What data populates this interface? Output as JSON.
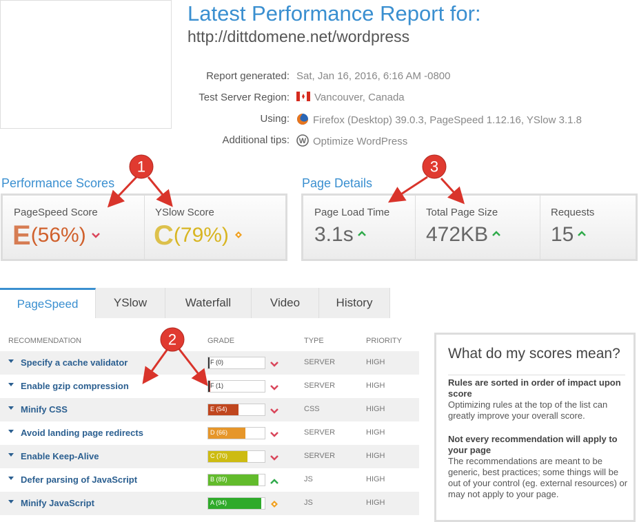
{
  "header": {
    "title": "Latest Performance Report for:",
    "url": "http://dittdomene.net/wordpress"
  },
  "info": [
    {
      "label": "Report generated:",
      "value": "Sat, Jan 16, 2016, 6:16 AM -0800",
      "icon": "none"
    },
    {
      "label": "Test Server Region:",
      "value": "Vancouver, Canada",
      "icon": "flag"
    },
    {
      "label": "Using:",
      "value": "Firefox (Desktop) 39.0.3, PageSpeed 1.12.16, YSlow 3.1.8",
      "icon": "firefox"
    },
    {
      "label": "Additional tips:",
      "value": "Optimize WordPress",
      "icon": "wordpress"
    }
  ],
  "performance_scores": {
    "title": "Performance Scores",
    "items": [
      {
        "label": "PageSpeed Score",
        "grade": "E",
        "score_label": "(56%)",
        "color": "#d0602c",
        "trend": "down"
      },
      {
        "label": "YSlow Score",
        "grade": "C",
        "score_label": "(79%)",
        "color": "#d8b522",
        "trend": "same"
      }
    ]
  },
  "page_details": {
    "title": "Page Details",
    "items": [
      {
        "label": "Page Load Time",
        "value": "3.1s",
        "trend": "up"
      },
      {
        "label": "Total Page Size",
        "value": "472KB",
        "trend": "up"
      },
      {
        "label": "Requests",
        "value": "15",
        "trend": "up"
      }
    ]
  },
  "tabs": [
    "PageSpeed",
    "YSlow",
    "Waterfall",
    "Video",
    "History"
  ],
  "active_tab": "PageSpeed",
  "table": {
    "headers": [
      "RECOMMENDATION",
      "GRADE",
      "TYPE",
      "PRIORITY"
    ],
    "rows": [
      {
        "recommendation": "Specify a cache validator",
        "grade_label": "F (0)",
        "score": 0,
        "color": "#b8332a",
        "trend": "down",
        "type": "SERVER",
        "priority": "HIGH"
      },
      {
        "recommendation": "Enable gzip compression",
        "grade_label": "F (1)",
        "score": 1,
        "color": "#b8332a",
        "trend": "down",
        "type": "SERVER",
        "priority": "HIGH"
      },
      {
        "recommendation": "Minify CSS",
        "grade_label": "E (54)",
        "score": 54,
        "color": "#c0461e",
        "trend": "down",
        "type": "CSS",
        "priority": "HIGH"
      },
      {
        "recommendation": "Avoid landing page redirects",
        "grade_label": "D (66)",
        "score": 66,
        "color": "#e6962a",
        "trend": "down",
        "type": "SERVER",
        "priority": "HIGH"
      },
      {
        "recommendation": "Enable Keep-Alive",
        "grade_label": "C (70)",
        "score": 70,
        "color": "#cdbb12",
        "trend": "down",
        "type": "SERVER",
        "priority": "HIGH"
      },
      {
        "recommendation": "Defer parsing of JavaScript",
        "grade_label": "B (89)",
        "score": 89,
        "color": "#62bb2c",
        "trend": "up",
        "type": "JS",
        "priority": "HIGH"
      },
      {
        "recommendation": "Minify JavaScript",
        "grade_label": "A (94)",
        "score": 94,
        "color": "#2faa2a",
        "trend": "same",
        "type": "JS",
        "priority": "HIGH"
      }
    ]
  },
  "sidebar": {
    "title": "What do my scores mean?",
    "sections": [
      {
        "heading": "Rules are sorted in order of impact upon score",
        "text": "Optimizing rules at the top of the list can greatly improve your overall score."
      },
      {
        "heading": "Not every recommendation will apply to your page",
        "text": "The recommendations are meant to be generic, best practices; some things will be out of your control (eg. external resources) or may not apply to your page."
      }
    ]
  },
  "annotations": [
    "1",
    "2",
    "3"
  ]
}
